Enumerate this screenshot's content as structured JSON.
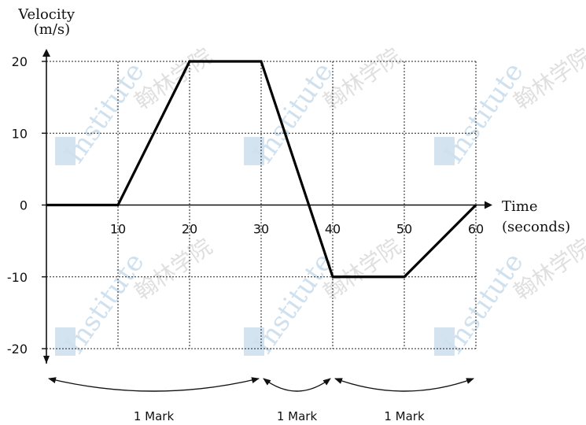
{
  "chart_data": {
    "type": "line",
    "ylabel": "Velocity\n(m/s)",
    "xlabel": "Time\n(seconds)",
    "xlim": [
      0,
      60
    ],
    "ylim": [
      -20,
      20
    ],
    "x_ticks": [
      10,
      20,
      30,
      40,
      50,
      60
    ],
    "y_ticks": [
      20,
      10,
      0,
      -10,
      -20
    ],
    "grid": true,
    "points": [
      {
        "x": 0,
        "y": 0
      },
      {
        "x": 10,
        "y": 0
      },
      {
        "x": 20,
        "y": 20
      },
      {
        "x": 30,
        "y": 20
      },
      {
        "x": 40,
        "y": -10
      },
      {
        "x": 50,
        "y": -10
      },
      {
        "x": 60,
        "y": 0
      }
    ],
    "annotations": [
      {
        "from": 0,
        "to": 30,
        "label": "1 Mark"
      },
      {
        "from": 30,
        "to": 40,
        "label": "1 Mark"
      },
      {
        "from": 40,
        "to": 60,
        "label": "1 Mark"
      }
    ]
  },
  "watermark": {
    "text": "Institute",
    "cjk": "翰林学院",
    "color": "#cfe0ee"
  }
}
